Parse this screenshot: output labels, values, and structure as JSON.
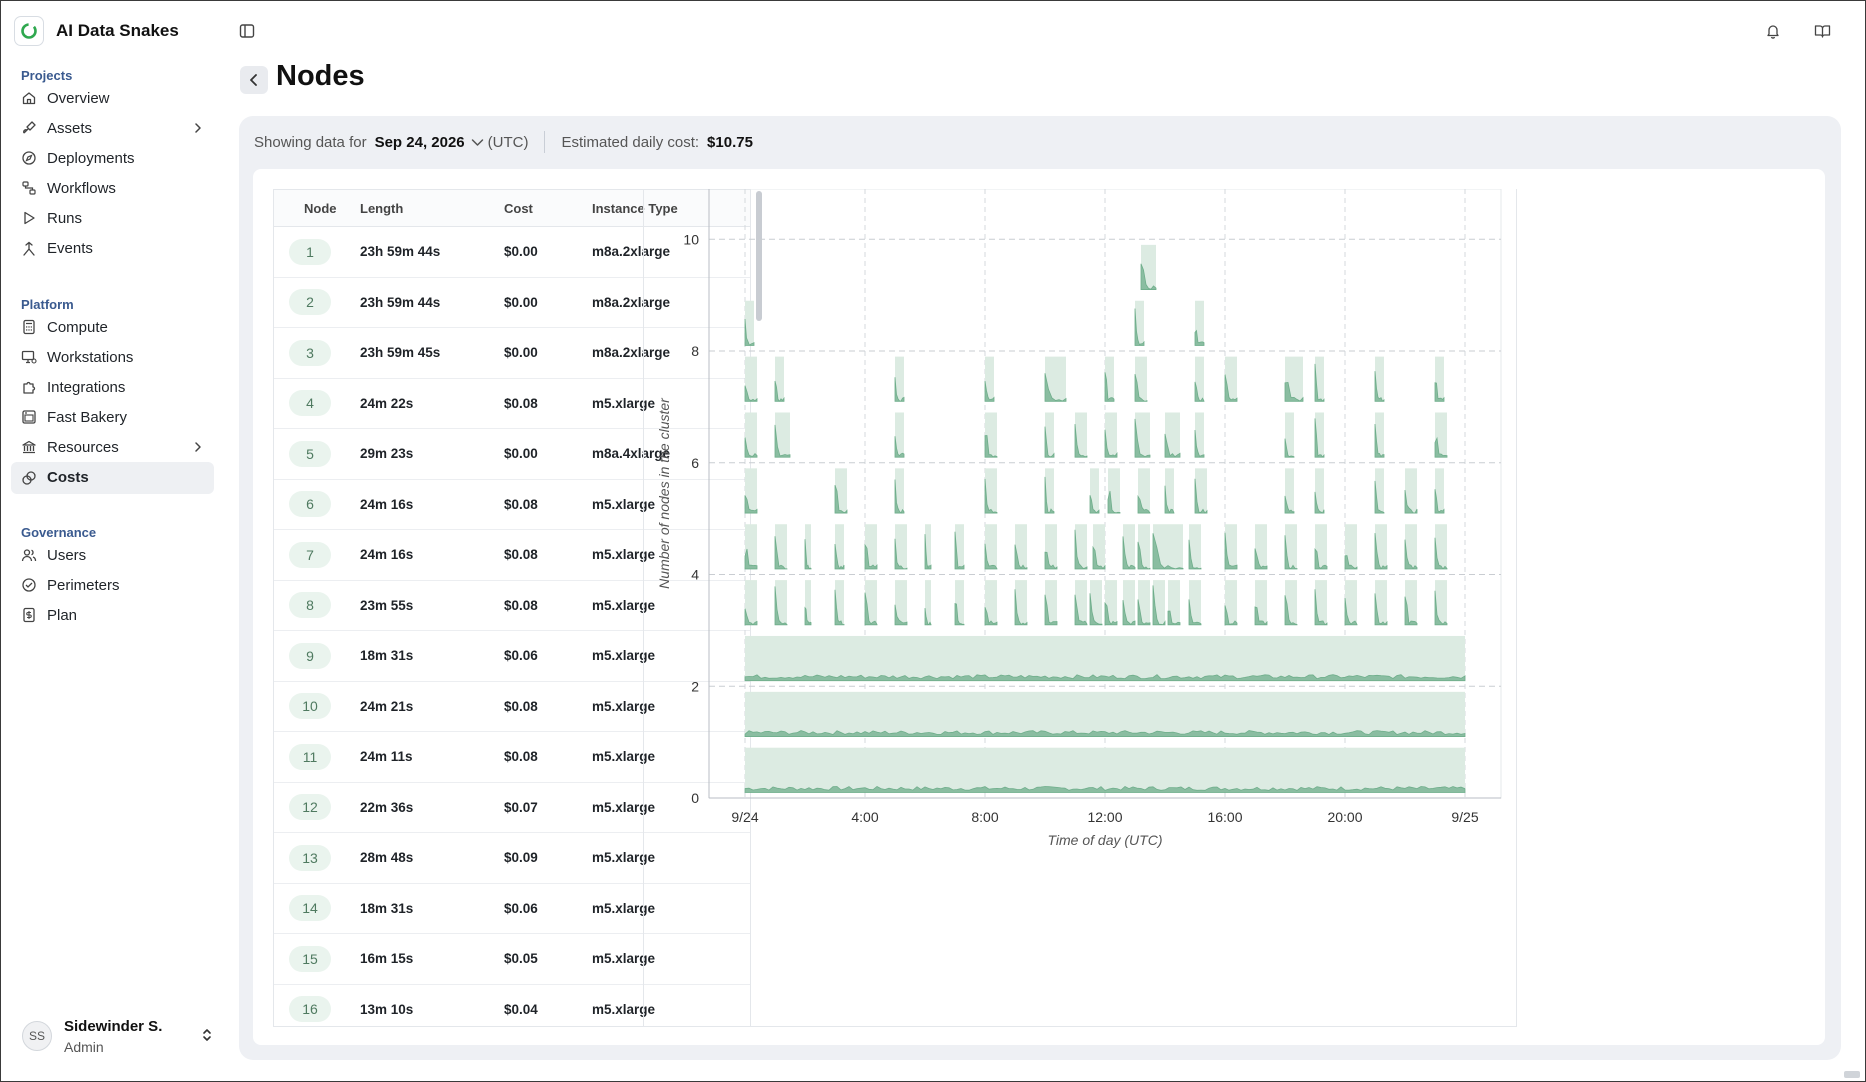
{
  "app": {
    "name": "AI Data Snakes"
  },
  "sidebar": {
    "sections": [
      {
        "title": "Projects",
        "items": [
          {
            "label": "Overview",
            "icon": "home-icon"
          },
          {
            "label": "Assets",
            "icon": "brush-icon",
            "expandable": true
          },
          {
            "label": "Deployments",
            "icon": "compass-icon"
          },
          {
            "label": "Workflows",
            "icon": "workflow-icon"
          },
          {
            "label": "Runs",
            "icon": "play-icon"
          },
          {
            "label": "Events",
            "icon": "fork-icon"
          }
        ]
      },
      {
        "title": "Platform",
        "items": [
          {
            "label": "Compute",
            "icon": "calculator-icon"
          },
          {
            "label": "Workstations",
            "icon": "monitor-icon"
          },
          {
            "label": "Integrations",
            "icon": "puzzle-icon"
          },
          {
            "label": "Fast Bakery",
            "icon": "oven-icon"
          },
          {
            "label": "Resources",
            "icon": "bank-icon",
            "expandable": true
          },
          {
            "label": "Costs",
            "icon": "coins-icon",
            "active": true
          }
        ]
      },
      {
        "title": "Governance",
        "items": [
          {
            "label": "Users",
            "icon": "users-icon"
          },
          {
            "label": "Perimeters",
            "icon": "perimeter-icon"
          },
          {
            "label": "Plan",
            "icon": "dollar-file-icon"
          }
        ]
      }
    ]
  },
  "user": {
    "initials": "SS",
    "name": "Sidewinder S.",
    "role": "Admin"
  },
  "page": {
    "title": "Nodes"
  },
  "filter": {
    "showing_label": "Showing data for",
    "date": "Sep 24, 2026",
    "timezone": "(UTC)",
    "cost_label": "Estimated daily cost:",
    "cost_value": "$10.75"
  },
  "table": {
    "headers": [
      "Node",
      "Length",
      "Cost",
      "Instance Type"
    ],
    "rows": [
      [
        "1",
        "23h 59m 44s",
        "$0.00",
        "m8a.2xlarge"
      ],
      [
        "2",
        "23h 59m 44s",
        "$0.00",
        "m8a.2xlarge"
      ],
      [
        "3",
        "23h 59m 45s",
        "$0.00",
        "m8a.2xlarge"
      ],
      [
        "4",
        "24m 22s",
        "$0.08",
        "m5.xlarge"
      ],
      [
        "5",
        "29m 23s",
        "$0.00",
        "m8a.4xlarge"
      ],
      [
        "6",
        "24m 16s",
        "$0.08",
        "m5.xlarge"
      ],
      [
        "7",
        "24m 16s",
        "$0.08",
        "m5.xlarge"
      ],
      [
        "8",
        "23m 55s",
        "$0.08",
        "m5.xlarge"
      ],
      [
        "9",
        "18m 31s",
        "$0.06",
        "m5.xlarge"
      ],
      [
        "10",
        "24m 21s",
        "$0.08",
        "m5.xlarge"
      ],
      [
        "11",
        "24m 11s",
        "$0.08",
        "m5.xlarge"
      ],
      [
        "12",
        "22m 36s",
        "$0.07",
        "m5.xlarge"
      ],
      [
        "13",
        "28m 48s",
        "$0.09",
        "m5.xlarge"
      ],
      [
        "14",
        "18m 31s",
        "$0.06",
        "m5.xlarge"
      ],
      [
        "15",
        "16m 15s",
        "$0.05",
        "m5.xlarge"
      ],
      [
        "16",
        "13m 10s",
        "$0.04",
        "m5.xlarge"
      ]
    ]
  },
  "chart_data": {
    "type": "area",
    "xlabel": "Time of day (UTC)",
    "ylabel": "Number of nodes in the cluster",
    "x_ticks": [
      "9/24",
      "4:00",
      "8:00",
      "12:00",
      "16:00",
      "20:00",
      "9/25"
    ],
    "x_tick_hours": [
      0,
      4,
      8,
      12,
      16,
      20,
      24
    ],
    "y_ticks": [
      0,
      2,
      4,
      6,
      8,
      10
    ],
    "xlim_hours": [
      -1.2,
      25.2
    ],
    "ylim": [
      0,
      10.9
    ],
    "grid": true,
    "colors": {
      "fill": "#dcebe2",
      "line": "#6fae8b"
    },
    "node_lanes": [
      {
        "level": 1,
        "segments": [
          [
            0.0,
            24.0
          ]
        ]
      },
      {
        "level": 2,
        "segments": [
          [
            0.0,
            24.0
          ]
        ]
      },
      {
        "level": 3,
        "segments": [
          [
            0.0,
            24.0
          ]
        ]
      },
      {
        "level": 4,
        "segments": [
          [
            0.0,
            0.4
          ],
          [
            1.0,
            1.4
          ],
          [
            2.0,
            2.2
          ],
          [
            3.0,
            3.3
          ],
          [
            4.0,
            4.4
          ],
          [
            5.0,
            5.4
          ],
          [
            6.0,
            6.2
          ],
          [
            7.0,
            7.3
          ],
          [
            8.0,
            8.4
          ],
          [
            9.0,
            9.4
          ],
          [
            10.0,
            10.4
          ],
          [
            11.0,
            11.4
          ],
          [
            11.5,
            11.9
          ],
          [
            12.0,
            12.4
          ],
          [
            12.6,
            13.0
          ],
          [
            13.1,
            13.5
          ],
          [
            13.6,
            14.0
          ],
          [
            14.1,
            14.5
          ],
          [
            14.8,
            15.2
          ],
          [
            16.0,
            16.4
          ],
          [
            17.0,
            17.4
          ],
          [
            18.0,
            18.4
          ],
          [
            19.0,
            19.4
          ],
          [
            20.0,
            20.4
          ],
          [
            21.0,
            21.4
          ],
          [
            22.0,
            22.4
          ],
          [
            23.0,
            23.4
          ]
        ]
      },
      {
        "level": 5,
        "segments": [
          [
            0.0,
            0.4
          ],
          [
            1.0,
            1.4
          ],
          [
            2.0,
            2.2
          ],
          [
            3.0,
            3.3
          ],
          [
            4.0,
            4.4
          ],
          [
            5.0,
            5.4
          ],
          [
            6.0,
            6.2
          ],
          [
            7.0,
            7.3
          ],
          [
            8.0,
            8.4
          ],
          [
            9.0,
            9.4
          ],
          [
            10.0,
            10.4
          ],
          [
            11.0,
            11.4
          ],
          [
            11.6,
            12.0
          ],
          [
            12.6,
            13.0
          ],
          [
            13.1,
            13.5
          ],
          [
            13.6,
            14.6
          ],
          [
            14.8,
            15.2
          ],
          [
            16.0,
            16.4
          ],
          [
            17.0,
            17.4
          ],
          [
            18.0,
            18.4
          ],
          [
            19.0,
            19.4
          ],
          [
            20.0,
            20.4
          ],
          [
            21.0,
            21.4
          ],
          [
            22.0,
            22.4
          ],
          [
            23.0,
            23.4
          ]
        ]
      },
      {
        "level": 6,
        "segments": [
          [
            0.0,
            0.4
          ],
          [
            3.0,
            3.4
          ],
          [
            5.0,
            5.3
          ],
          [
            8.0,
            8.4
          ],
          [
            10.0,
            10.3
          ],
          [
            11.5,
            11.8
          ],
          [
            12.1,
            12.5
          ],
          [
            13.1,
            13.5
          ],
          [
            14.0,
            14.3
          ],
          [
            15.0,
            15.4
          ],
          [
            18.0,
            18.3
          ],
          [
            19.0,
            19.3
          ],
          [
            21.0,
            21.3
          ],
          [
            22.0,
            22.4
          ],
          [
            23.0,
            23.3
          ]
        ]
      },
      {
        "level": 7,
        "segments": [
          [
            0.0,
            0.4
          ],
          [
            1.0,
            1.5
          ],
          [
            5.0,
            5.3
          ],
          [
            8.0,
            8.4
          ],
          [
            10.0,
            10.3
          ],
          [
            11.0,
            11.4
          ],
          [
            12.0,
            12.4
          ],
          [
            13.0,
            13.5
          ],
          [
            14.0,
            14.5
          ],
          [
            15.0,
            15.3
          ],
          [
            18.0,
            18.3
          ],
          [
            19.0,
            19.3
          ],
          [
            21.0,
            21.3
          ],
          [
            23.0,
            23.4
          ]
        ]
      },
      {
        "level": 8,
        "segments": [
          [
            0.0,
            0.4
          ],
          [
            1.0,
            1.3
          ],
          [
            5.0,
            5.3
          ],
          [
            8.0,
            8.3
          ],
          [
            10.0,
            10.7
          ],
          [
            12.0,
            12.3
          ],
          [
            13.0,
            13.4
          ],
          [
            15.0,
            15.3
          ],
          [
            16.0,
            16.4
          ],
          [
            18.0,
            18.6
          ],
          [
            19.0,
            19.3
          ],
          [
            21.0,
            21.3
          ],
          [
            23.0,
            23.3
          ]
        ]
      },
      {
        "level": 9,
        "segments": [
          [
            0.0,
            0.3
          ],
          [
            13.0,
            13.3
          ],
          [
            15.0,
            15.3
          ]
        ]
      },
      {
        "level": 10,
        "segments": [
          [
            13.2,
            13.7
          ]
        ]
      }
    ]
  }
}
